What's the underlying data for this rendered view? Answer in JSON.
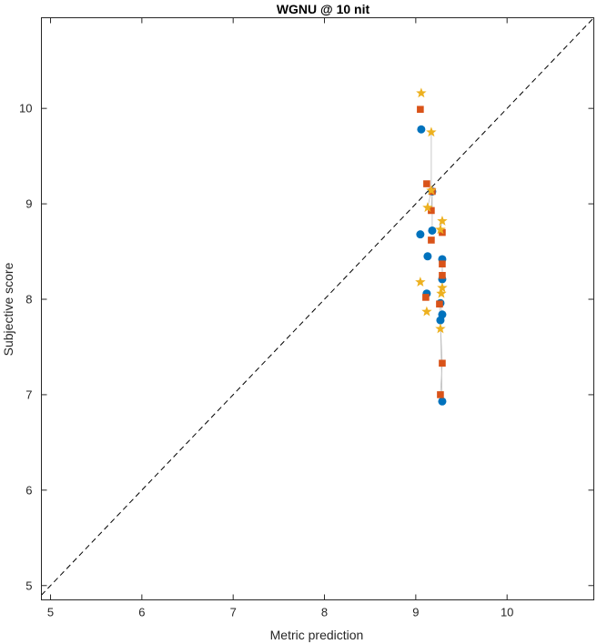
{
  "chart_data": {
    "type": "scatter",
    "title": "WGNU @ 10 nit",
    "xlabel": "Metric prediction",
    "ylabel": "Subjective score",
    "xlim": [
      4.9,
      10.95
    ],
    "ylim": [
      4.85,
      10.95
    ],
    "xticks": [
      5,
      6,
      7,
      8,
      9,
      10
    ],
    "yticks": [
      5,
      6,
      7,
      8,
      9,
      10
    ],
    "grid": false,
    "reference_line": {
      "from": [
        4.9,
        4.9
      ],
      "to": [
        10.95,
        10.95
      ],
      "style": "dashed",
      "color": "#000000"
    },
    "connector_color": "#bdbdbd",
    "series": [
      {
        "marker": "circle",
        "color": "#0072BD",
        "points": [
          [
            9.06,
            9.78
          ],
          [
            9.18,
            9.13
          ],
          [
            9.18,
            8.72
          ],
          [
            9.05,
            8.68
          ],
          [
            9.13,
            8.45
          ],
          [
            9.29,
            8.42
          ],
          [
            9.29,
            8.21
          ],
          [
            9.12,
            8.06
          ],
          [
            9.27,
            7.96
          ],
          [
            9.29,
            7.84
          ],
          [
            9.27,
            7.78
          ],
          [
            9.29,
            6.93
          ]
        ]
      },
      {
        "marker": "square",
        "color": "#D95319",
        "points": [
          [
            9.05,
            9.99
          ],
          [
            9.12,
            9.21
          ],
          [
            9.18,
            9.13
          ],
          [
            9.17,
            8.93
          ],
          [
            9.29,
            8.7
          ],
          [
            9.17,
            8.62
          ],
          [
            9.29,
            8.37
          ],
          [
            9.29,
            8.25
          ],
          [
            9.11,
            8.02
          ],
          [
            9.26,
            7.95
          ],
          [
            9.29,
            7.33
          ],
          [
            9.27,
            7.0
          ]
        ]
      },
      {
        "marker": "star",
        "color": "#EDB120",
        "points": [
          [
            9.06,
            10.16
          ],
          [
            9.17,
            9.75
          ],
          [
            9.17,
            9.14
          ],
          [
            9.13,
            8.96
          ],
          [
            9.29,
            8.82
          ],
          [
            9.27,
            8.73
          ],
          [
            9.05,
            8.18
          ],
          [
            9.29,
            8.12
          ],
          [
            9.28,
            8.06
          ],
          [
            9.12,
            7.87
          ],
          [
            9.27,
            7.69
          ]
        ]
      }
    ]
  }
}
